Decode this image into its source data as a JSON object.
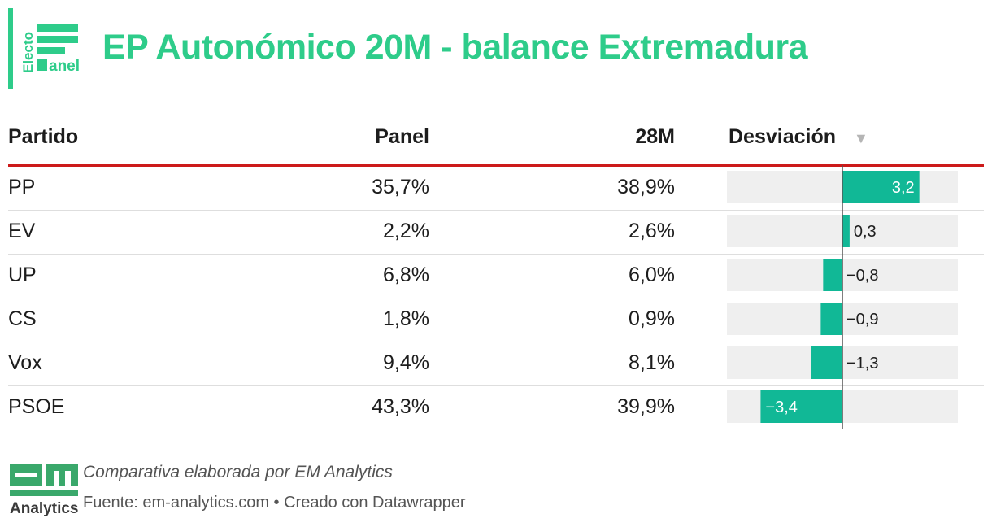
{
  "header": {
    "title": "EP Autonómico 20M - balance Extremadura",
    "logo_text_top": "Electo",
    "logo_text_bottom": "anel",
    "accent_color": "#2ecc8a"
  },
  "table": {
    "columns": [
      "Partido",
      "Panel",
      "28M",
      "Desviación"
    ],
    "sort_icon": "sort-descending-icon"
  },
  "chart_data": {
    "type": "bar",
    "title": "EP Autonómico 20M - balance Extremadura",
    "categories": [
      "PP",
      "EV",
      "UP",
      "CS",
      "Vox",
      "PSOE"
    ],
    "series": [
      {
        "name": "Panel",
        "values": [
          "35,7%",
          "2,2%",
          "6,8%",
          "1,8%",
          "9,4%",
          "43,3%"
        ]
      },
      {
        "name": "28M",
        "values": [
          "38,9%",
          "2,6%",
          "6,0%",
          "0,9%",
          "8,1%",
          "39,9%"
        ]
      },
      {
        "name": "Desviación",
        "values": [
          3.2,
          0.3,
          -0.8,
          -0.9,
          -1.3,
          -3.4
        ]
      }
    ],
    "deviation_labels": [
      "3,2",
      "0,3",
      "−0,8",
      "−0,9",
      "−1,3",
      "−3,4"
    ],
    "xlim": [
      -4.8,
      4.8
    ],
    "bar_color": "#11b896",
    "track_color": "#efefef",
    "xlabel": "",
    "ylabel": ""
  },
  "footer": {
    "note": "Comparativa elaborada por EM Analytics",
    "source": "Fuente: em-analytics.com • Creado con Datawrapper",
    "logo_text": "Analytics",
    "logo_color": "#3aa86b"
  }
}
